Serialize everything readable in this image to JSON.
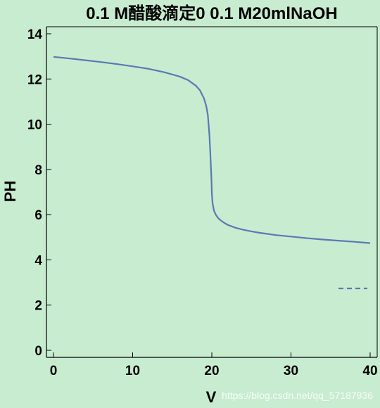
{
  "chart_data": {
    "type": "line",
    "title": "0.1 M醋酸滴定0 0.1 M20mlNaOH",
    "xlabel": "V",
    "ylabel": "PH",
    "xlim": [
      0,
      40
    ],
    "ylim": [
      0,
      14
    ],
    "xticks": [
      0,
      10,
      20,
      30,
      40
    ],
    "yticks": [
      0,
      2,
      4,
      6,
      8,
      10,
      12,
      14
    ],
    "grid": false,
    "legend": "right, unlabeled dashed line sample",
    "series_color": "#5a78b4",
    "series": [
      {
        "x": [
          0,
          2,
          4,
          6,
          8,
          10,
          12,
          14,
          16,
          17,
          18,
          18.5,
          19,
          19.3,
          19.5,
          19.7,
          19.8,
          19.9,
          19.95,
          20,
          20.05,
          20.1,
          20.2,
          20.3,
          20.5,
          20.8,
          21,
          21.5,
          22,
          23,
          24,
          25,
          26,
          28,
          30,
          32,
          34,
          36,
          38,
          40
        ],
        "y": [
          12.98,
          12.91,
          12.83,
          12.75,
          12.66,
          12.56,
          12.45,
          12.3,
          12.1,
          11.95,
          11.7,
          11.5,
          11.15,
          10.8,
          10.4,
          9.5,
          8.8,
          8.0,
          7.6,
          7.0,
          6.7,
          6.5,
          6.3,
          6.15,
          6.0,
          5.85,
          5.78,
          5.65,
          5.55,
          5.42,
          5.33,
          5.26,
          5.2,
          5.1,
          5.03,
          4.96,
          4.9,
          4.85,
          4.8,
          4.74
        ]
      }
    ]
  },
  "watermark": "https://blog.csdn.net/qq_57187936"
}
